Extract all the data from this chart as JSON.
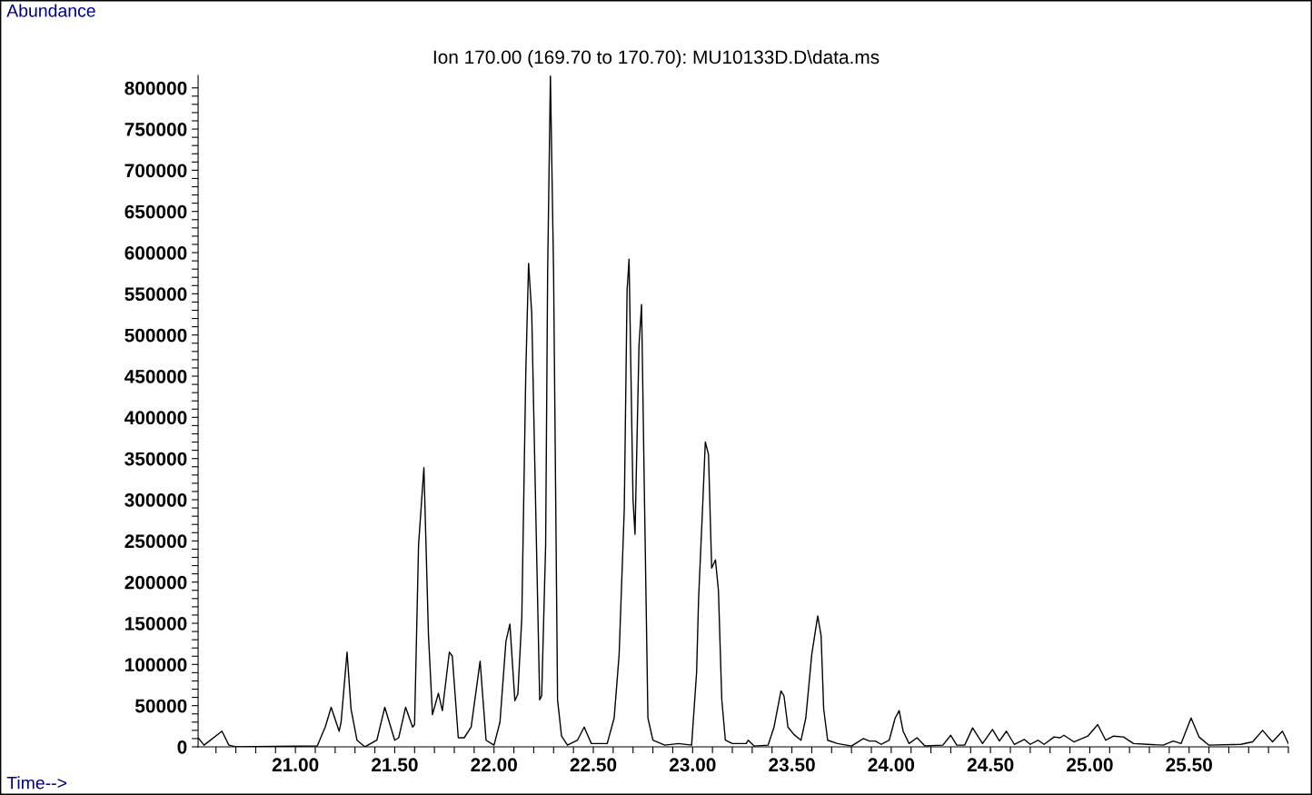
{
  "chart_data": {
    "type": "line",
    "title": "Ion 170.00 (169.70 to 170.70): MU10133D.D\\data.ms",
    "xlabel": "Time-->",
    "ylabel": "Abundance",
    "xlim": [
      20.51,
      26.0
    ],
    "ylim": [
      0,
      815000
    ],
    "xticks": [
      {
        "value": 20.6,
        "label": null
      },
      {
        "value": 20.7,
        "label": null
      },
      {
        "value": 20.8,
        "label": null
      },
      {
        "value": 20.9,
        "label": null
      },
      {
        "value": 21.0,
        "label": "21.00"
      },
      {
        "value": 21.1,
        "label": null
      },
      {
        "value": 21.2,
        "label": null
      },
      {
        "value": 21.3,
        "label": null
      },
      {
        "value": 21.4,
        "label": null
      },
      {
        "value": 21.5,
        "label": "21.50"
      },
      {
        "value": 21.6,
        "label": null
      },
      {
        "value": 21.7,
        "label": null
      },
      {
        "value": 21.8,
        "label": null
      },
      {
        "value": 21.9,
        "label": null
      },
      {
        "value": 22.0,
        "label": "22.00"
      },
      {
        "value": 22.1,
        "label": null
      },
      {
        "value": 22.2,
        "label": null
      },
      {
        "value": 22.3,
        "label": null
      },
      {
        "value": 22.4,
        "label": null
      },
      {
        "value": 22.5,
        "label": "22.50"
      },
      {
        "value": 22.6,
        "label": null
      },
      {
        "value": 22.7,
        "label": null
      },
      {
        "value": 22.8,
        "label": null
      },
      {
        "value": 22.9,
        "label": null
      },
      {
        "value": 23.0,
        "label": "23.00"
      },
      {
        "value": 23.1,
        "label": null
      },
      {
        "value": 23.2,
        "label": null
      },
      {
        "value": 23.3,
        "label": null
      },
      {
        "value": 23.4,
        "label": null
      },
      {
        "value": 23.5,
        "label": "23.50"
      },
      {
        "value": 23.6,
        "label": null
      },
      {
        "value": 23.7,
        "label": null
      },
      {
        "value": 23.8,
        "label": null
      },
      {
        "value": 23.9,
        "label": null
      },
      {
        "value": 24.0,
        "label": "24.00"
      },
      {
        "value": 24.1,
        "label": null
      },
      {
        "value": 24.2,
        "label": null
      },
      {
        "value": 24.3,
        "label": null
      },
      {
        "value": 24.4,
        "label": null
      },
      {
        "value": 24.5,
        "label": "24.50"
      },
      {
        "value": 24.6,
        "label": null
      },
      {
        "value": 24.7,
        "label": null
      },
      {
        "value": 24.8,
        "label": null
      },
      {
        "value": 24.9,
        "label": null
      },
      {
        "value": 25.0,
        "label": "25.00"
      },
      {
        "value": 25.1,
        "label": null
      },
      {
        "value": 25.2,
        "label": null
      },
      {
        "value": 25.3,
        "label": null
      },
      {
        "value": 25.4,
        "label": null
      },
      {
        "value": 25.5,
        "label": "25.50"
      },
      {
        "value": 25.6,
        "label": null
      },
      {
        "value": 25.7,
        "label": null
      },
      {
        "value": 25.8,
        "label": null
      },
      {
        "value": 25.9,
        "label": null
      },
      {
        "value": 26.0,
        "label": null
      }
    ],
    "yticks": [
      0,
      {
        "value": 10000,
        "label": null
      },
      {
        "value": 20000,
        "label": null
      },
      {
        "value": 30000,
        "label": null
      },
      {
        "value": 40000,
        "label": null
      },
      50000,
      {
        "value": 60000,
        "label": null
      },
      {
        "value": 70000,
        "label": null
      },
      {
        "value": 80000,
        "label": null
      },
      {
        "value": 90000,
        "label": null
      },
      100000,
      {
        "value": 110000,
        "label": null
      },
      {
        "value": 120000,
        "label": null
      },
      {
        "value": 130000,
        "label": null
      },
      {
        "value": 140000,
        "label": null
      },
      150000,
      {
        "value": 160000,
        "label": null
      },
      {
        "value": 170000,
        "label": null
      },
      {
        "value": 180000,
        "label": null
      },
      {
        "value": 190000,
        "label": null
      },
      200000,
      {
        "value": 210000,
        "label": null
      },
      {
        "value": 220000,
        "label": null
      },
      {
        "value": 230000,
        "label": null
      },
      {
        "value": 240000,
        "label": null
      },
      250000,
      {
        "value": 260000,
        "label": null
      },
      {
        "value": 270000,
        "label": null
      },
      {
        "value": 280000,
        "label": null
      },
      {
        "value": 290000,
        "label": null
      },
      300000,
      {
        "value": 310000,
        "label": null
      },
      {
        "value": 320000,
        "label": null
      },
      {
        "value": 330000,
        "label": null
      },
      {
        "value": 340000,
        "label": null
      },
      350000,
      {
        "value": 360000,
        "label": null
      },
      {
        "value": 370000,
        "label": null
      },
      {
        "value": 380000,
        "label": null
      },
      {
        "value": 390000,
        "label": null
      },
      400000,
      {
        "value": 410000,
        "label": null
      },
      {
        "value": 420000,
        "label": null
      },
      {
        "value": 430000,
        "label": null
      },
      {
        "value": 440000,
        "label": null
      },
      450000,
      {
        "value": 460000,
        "label": null
      },
      {
        "value": 470000,
        "label": null
      },
      {
        "value": 480000,
        "label": null
      },
      {
        "value": 490000,
        "label": null
      },
      500000,
      {
        "value": 510000,
        "label": null
      },
      {
        "value": 520000,
        "label": null
      },
      {
        "value": 530000,
        "label": null
      },
      {
        "value": 540000,
        "label": null
      },
      550000,
      {
        "value": 560000,
        "label": null
      },
      {
        "value": 570000,
        "label": null
      },
      {
        "value": 580000,
        "label": null
      },
      {
        "value": 590000,
        "label": null
      },
      600000,
      {
        "value": 610000,
        "label": null
      },
      {
        "value": 620000,
        "label": null
      },
      {
        "value": 630000,
        "label": null
      },
      {
        "value": 640000,
        "label": null
      },
      650000,
      {
        "value": 660000,
        "label": null
      },
      {
        "value": 670000,
        "label": null
      },
      {
        "value": 680000,
        "label": null
      },
      {
        "value": 690000,
        "label": null
      },
      700000,
      {
        "value": 710000,
        "label": null
      },
      {
        "value": 720000,
        "label": null
      },
      {
        "value": 730000,
        "label": null
      },
      {
        "value": 740000,
        "label": null
      },
      750000,
      {
        "value": 760000,
        "label": null
      },
      {
        "value": 770000,
        "label": null
      },
      {
        "value": 780000,
        "label": null
      },
      {
        "value": 790000,
        "label": null
      },
      800000
    ],
    "grid": false,
    "legend": false,
    "marker": "none",
    "line_style": "solid",
    "series": [
      {
        "color": "#000000",
        "x": [
          20.51,
          20.54,
          20.63,
          20.665,
          20.7,
          21.11,
          21.15,
          21.18,
          21.22,
          21.23,
          21.26,
          21.28,
          21.31,
          21.35,
          21.41,
          21.45,
          21.5,
          21.52,
          21.555,
          21.59,
          21.6,
          21.62,
          21.647,
          21.67,
          21.69,
          21.72,
          21.74,
          21.775,
          21.79,
          21.82,
          21.85,
          21.885,
          21.93,
          21.96,
          22.0,
          22.03,
          22.06,
          22.08,
          22.105,
          22.12,
          22.14,
          22.16,
          22.174,
          22.19,
          22.21,
          22.23,
          22.24,
          22.26,
          22.27,
          22.284,
          22.3,
          22.32,
          22.34,
          22.37,
          22.42,
          22.454,
          22.49,
          22.57,
          22.605,
          22.63,
          22.656,
          22.67,
          22.68,
          22.7,
          22.71,
          22.73,
          22.743,
          22.757,
          22.775,
          22.8,
          22.86,
          22.93,
          22.995,
          23.02,
          23.03,
          23.05,
          23.064,
          23.08,
          23.096,
          23.115,
          23.13,
          23.147,
          23.165,
          23.2,
          23.27,
          23.28,
          23.31,
          23.38,
          23.41,
          23.445,
          23.46,
          23.48,
          23.51,
          23.546,
          23.57,
          23.6,
          23.63,
          23.647,
          23.66,
          23.68,
          23.73,
          23.8,
          23.86,
          23.89,
          23.92,
          23.95,
          23.99,
          24.02,
          24.04,
          24.06,
          24.09,
          24.13,
          24.17,
          24.26,
          24.3,
          24.33,
          24.37,
          24.41,
          24.46,
          24.51,
          24.545,
          24.58,
          24.62,
          24.67,
          24.7,
          24.74,
          24.77,
          24.82,
          24.85,
          24.87,
          24.92,
          24.99,
          25.04,
          25.08,
          25.12,
          25.17,
          25.22,
          25.29,
          25.37,
          25.42,
          25.46,
          25.51,
          25.55,
          25.6,
          25.76,
          25.82,
          25.87,
          25.92,
          25.97,
          26.0
        ],
        "values": [
          11000,
          2000,
          19000,
          2000,
          0,
          1000,
          24000,
          48000,
          19000,
          30000,
          115000,
          46000,
          8000,
          0,
          8000,
          48000,
          8000,
          11000,
          48000,
          24000,
          27000,
          245000,
          339000,
          135000,
          39000,
          65000,
          44000,
          115000,
          110000,
          11000,
          11000,
          24000,
          104000,
          8000,
          2000,
          30000,
          128000,
          149000,
          56000,
          64000,
          157000,
          454000,
          587000,
          526000,
          289000,
          57000,
          62000,
          245000,
          576000,
          815000,
          576000,
          57000,
          13000,
          2000,
          8000,
          24000,
          4000,
          4000,
          35000,
          112000,
          289000,
          554000,
          592000,
          300000,
          258000,
          487000,
          537000,
          311000,
          35000,
          8000,
          2000,
          4000,
          2000,
          90000,
          179000,
          289000,
          370000,
          355000,
          217000,
          227000,
          190000,
          57000,
          8000,
          4000,
          4000,
          8000,
          1000,
          2000,
          24000,
          68000,
          62000,
          24000,
          15000,
          8000,
          35000,
          112000,
          159000,
          135000,
          46000,
          8000,
          4000,
          1000,
          10000,
          7000,
          7000,
          3000,
          8000,
          35000,
          44000,
          19000,
          4000,
          11000,
          1000,
          2000,
          14000,
          2000,
          2000,
          23000,
          4000,
          21000,
          7000,
          19000,
          3000,
          9000,
          3000,
          8000,
          3000,
          12000,
          11000,
          14000,
          6000,
          13000,
          27000,
          8000,
          13000,
          12000,
          4000,
          3000,
          2000,
          7000,
          4000,
          35000,
          12000,
          2000,
          3000,
          6000,
          20000,
          6000,
          19000,
          4000
        ]
      }
    ]
  }
}
